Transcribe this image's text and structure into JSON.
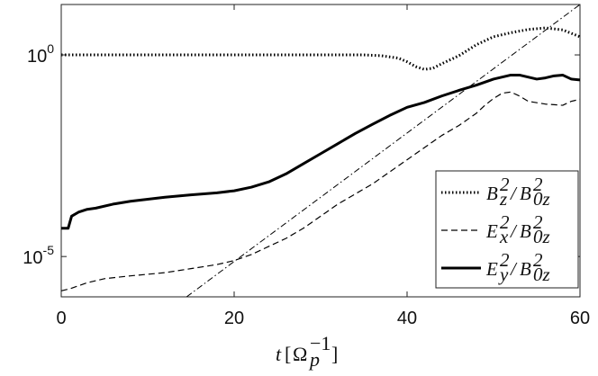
{
  "chart_data": {
    "type": "line",
    "xlabel": "t[Ω_p^-1]",
    "ylabel": "",
    "xlim": [
      0,
      60
    ],
    "ylim_log10": [
      -6.0,
      1.25
    ],
    "y_scale": "log",
    "grid": false,
    "legend_position": "lower-right",
    "x_ticks": [
      {
        "value": 0,
        "label": "0"
      },
      {
        "value": 20,
        "label": "20"
      },
      {
        "value": 40,
        "label": "40"
      },
      {
        "value": 60,
        "label": "60"
      }
    ],
    "y_ticks": [
      {
        "exp": 0,
        "label_base": "10",
        "label_exp": "0"
      },
      {
        "exp": -5,
        "label_base": "10",
        "label_exp": "-5"
      }
    ],
    "series": [
      {
        "name": "B_z^2/B_0z^2",
        "style": "dotted",
        "x": [
          0,
          5,
          10,
          15,
          20,
          25,
          30,
          35,
          37,
          39,
          40,
          41,
          42,
          43,
          44,
          46,
          48,
          50,
          52,
          54,
          56,
          58,
          60
        ],
        "log10_y": [
          0,
          0,
          0,
          0,
          0,
          0,
          0,
          0,
          -0.02,
          -0.08,
          -0.17,
          -0.29,
          -0.36,
          -0.33,
          -0.22,
          -0.02,
          0.25,
          0.45,
          0.55,
          0.63,
          0.67,
          0.62,
          0.45
        ]
      },
      {
        "name": "E_x^2/B_0z^2",
        "style": "dashed",
        "x": [
          0,
          1,
          3,
          5,
          8,
          12,
          15,
          18,
          20,
          22,
          24,
          26,
          28,
          30,
          32,
          34,
          36,
          38,
          40,
          42,
          44,
          46,
          48,
          49,
          50,
          51,
          52,
          53,
          54,
          56,
          58,
          59,
          60
        ],
        "log10_y": [
          -5.85,
          -5.8,
          -5.65,
          -5.55,
          -5.48,
          -5.4,
          -5.3,
          -5.2,
          -5.1,
          -4.95,
          -4.75,
          -4.55,
          -4.3,
          -4.0,
          -3.7,
          -3.45,
          -3.2,
          -2.9,
          -2.6,
          -2.3,
          -2.0,
          -1.75,
          -1.45,
          -1.25,
          -1.08,
          -0.95,
          -0.92,
          -1.02,
          -1.15,
          -1.22,
          -1.25,
          -1.15,
          -1.1
        ]
      },
      {
        "name": "E_y^2/B_0z^2",
        "style": "solid",
        "x": [
          0,
          0.8,
          1.2,
          2,
          3,
          4,
          6,
          8,
          10,
          12,
          15,
          18,
          20,
          22,
          24,
          26,
          28,
          30,
          32,
          34,
          36,
          38,
          40,
          42,
          44,
          46,
          48,
          50,
          52,
          53,
          54,
          55,
          56,
          57,
          58,
          59,
          60
        ],
        "log10_y": [
          -4.3,
          -4.3,
          -4.0,
          -3.9,
          -3.83,
          -3.8,
          -3.7,
          -3.63,
          -3.58,
          -3.53,
          -3.47,
          -3.42,
          -3.37,
          -3.28,
          -3.15,
          -2.95,
          -2.7,
          -2.45,
          -2.2,
          -1.95,
          -1.72,
          -1.5,
          -1.3,
          -1.18,
          -1.02,
          -0.88,
          -0.75,
          -0.6,
          -0.5,
          -0.5,
          -0.55,
          -0.6,
          -0.57,
          -0.52,
          -0.5,
          -0.6,
          -0.62
        ]
      },
      {
        "name": "",
        "style": "dashdot",
        "x": [
          14.5,
          60
        ],
        "log10_y": [
          -6.0,
          1.25
        ]
      }
    ],
    "legend": [
      {
        "style": "dotted",
        "base": "B",
        "sub": "z",
        "sup": "2",
        "den_base": "B",
        "den_sub": "0z",
        "den_sup": "2"
      },
      {
        "style": "dashed",
        "base": "E",
        "sub": "x",
        "sup": "2",
        "den_base": "B",
        "den_sub": "0z",
        "den_sup": "2"
      },
      {
        "style": "solid",
        "base": "E",
        "sub": "y",
        "sup": "2",
        "den_base": "B",
        "den_sub": "0z",
        "den_sup": "2"
      }
    ],
    "xlabel_parts": {
      "var": "t",
      "open": "[",
      "base": "Ω",
      "sub": "p",
      "sup": "−1",
      "close": "]"
    }
  }
}
